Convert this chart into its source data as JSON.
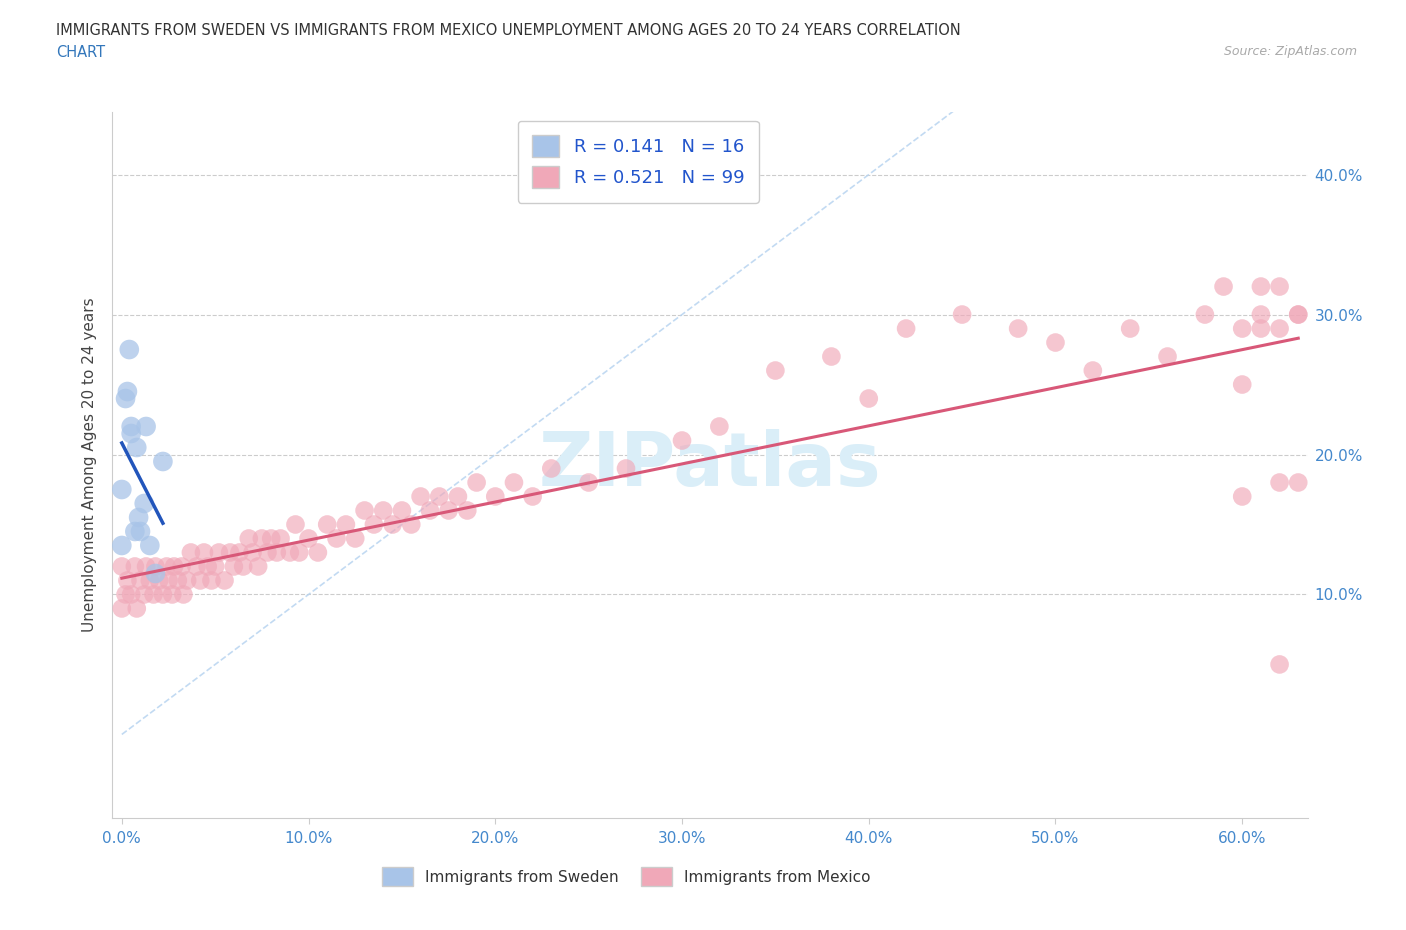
{
  "title_line1": "IMMIGRANTS FROM SWEDEN VS IMMIGRANTS FROM MEXICO UNEMPLOYMENT AMONG AGES 20 TO 24 YEARS CORRELATION",
  "title_line2": "CHART",
  "source_text": "Source: ZipAtlas.com",
  "ylabel": "Unemployment Among Ages 20 to 24 years",
  "xlabel_ticks": [
    "0.0%",
    "10.0%",
    "20.0%",
    "30.0%",
    "40.0%",
    "50.0%",
    "60.0%"
  ],
  "right_ytick_labels": [
    "10.0%",
    "20.0%",
    "30.0%",
    "40.0%"
  ],
  "right_ytick_vals": [
    0.1,
    0.2,
    0.3,
    0.4
  ],
  "xlim": [
    -0.005,
    0.635
  ],
  "ylim": [
    -0.06,
    0.445
  ],
  "sweden_R": 0.141,
  "sweden_N": 16,
  "mexico_R": 0.521,
  "mexico_N": 99,
  "sweden_color": "#a8c4e8",
  "mexico_color": "#f0a8b8",
  "sweden_line_color": "#2255bb",
  "mexico_line_color": "#d85878",
  "diag_line_color": "#b8d4f0",
  "watermark_color": "#daeef8",
  "tick_label_color": "#4488cc",
  "sweden_x": [
    0.0,
    0.0,
    0.002,
    0.003,
    0.004,
    0.005,
    0.005,
    0.007,
    0.008,
    0.009,
    0.01,
    0.012,
    0.013,
    0.015,
    0.018,
    0.022
  ],
  "sweden_y": [
    0.175,
    0.135,
    0.24,
    0.245,
    0.275,
    0.22,
    0.215,
    0.145,
    0.205,
    0.155,
    0.145,
    0.165,
    0.22,
    0.135,
    0.115,
    0.195
  ],
  "mexico_x": [
    0.0,
    0.0,
    0.002,
    0.003,
    0.005,
    0.007,
    0.008,
    0.01,
    0.012,
    0.013,
    0.015,
    0.017,
    0.018,
    0.02,
    0.022,
    0.024,
    0.025,
    0.027,
    0.028,
    0.03,
    0.032,
    0.033,
    0.035,
    0.037,
    0.04,
    0.042,
    0.044,
    0.046,
    0.048,
    0.05,
    0.052,
    0.055,
    0.058,
    0.06,
    0.063,
    0.065,
    0.068,
    0.07,
    0.073,
    0.075,
    0.078,
    0.08,
    0.083,
    0.085,
    0.09,
    0.093,
    0.095,
    0.1,
    0.105,
    0.11,
    0.115,
    0.12,
    0.125,
    0.13,
    0.135,
    0.14,
    0.145,
    0.15,
    0.155,
    0.16,
    0.165,
    0.17,
    0.175,
    0.18,
    0.185,
    0.19,
    0.2,
    0.21,
    0.22,
    0.23,
    0.25,
    0.27,
    0.3,
    0.32,
    0.35,
    0.38,
    0.4,
    0.42,
    0.45,
    0.48,
    0.5,
    0.52,
    0.54,
    0.56,
    0.58,
    0.59,
    0.6,
    0.6,
    0.6,
    0.61,
    0.61,
    0.61,
    0.62,
    0.62,
    0.62,
    0.62,
    0.63,
    0.63,
    0.63
  ],
  "mexico_y": [
    0.09,
    0.12,
    0.1,
    0.11,
    0.1,
    0.12,
    0.09,
    0.11,
    0.1,
    0.12,
    0.11,
    0.1,
    0.12,
    0.11,
    0.1,
    0.12,
    0.11,
    0.1,
    0.12,
    0.11,
    0.12,
    0.1,
    0.11,
    0.13,
    0.12,
    0.11,
    0.13,
    0.12,
    0.11,
    0.12,
    0.13,
    0.11,
    0.13,
    0.12,
    0.13,
    0.12,
    0.14,
    0.13,
    0.12,
    0.14,
    0.13,
    0.14,
    0.13,
    0.14,
    0.13,
    0.15,
    0.13,
    0.14,
    0.13,
    0.15,
    0.14,
    0.15,
    0.14,
    0.16,
    0.15,
    0.16,
    0.15,
    0.16,
    0.15,
    0.17,
    0.16,
    0.17,
    0.16,
    0.17,
    0.16,
    0.18,
    0.17,
    0.18,
    0.17,
    0.19,
    0.18,
    0.19,
    0.21,
    0.22,
    0.26,
    0.27,
    0.24,
    0.29,
    0.3,
    0.29,
    0.28,
    0.26,
    0.29,
    0.27,
    0.3,
    0.32,
    0.17,
    0.25,
    0.29,
    0.3,
    0.32,
    0.29,
    0.18,
    0.05,
    0.29,
    0.32,
    0.18,
    0.3,
    0.3
  ]
}
